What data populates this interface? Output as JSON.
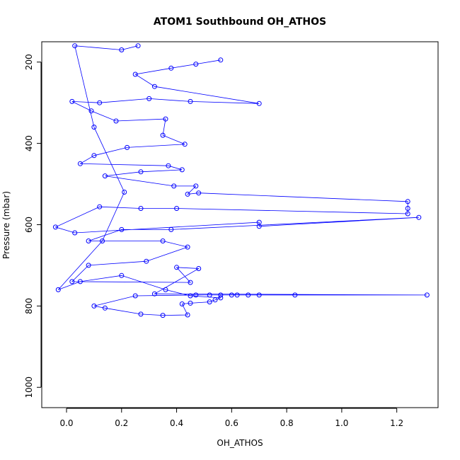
{
  "chart_data": {
    "type": "scatter",
    "title": "ATOM1 Southbound OH_ATHOS",
    "xlabel": "OH_ATHOS",
    "ylabel": "Pressure (mbar)",
    "xlim": [
      -0.09,
      1.35
    ],
    "ylim": [
      1050,
      150
    ],
    "y_reversed": true,
    "x_ticks": [
      0.0,
      0.2,
      0.4,
      0.6,
      0.8,
      1.0,
      1.2
    ],
    "x_tick_labels": [
      "0.0",
      "0.2",
      "0.4",
      "0.6",
      "0.8",
      "1.0",
      "1.2"
    ],
    "y_ticks": [
      200,
      400,
      600,
      800,
      1000
    ],
    "y_tick_labels": [
      "200",
      "400",
      "600",
      "800",
      "1000"
    ],
    "color": "#0000ff",
    "marker": "open-circle",
    "lines_connect_points": true,
    "series": [
      {
        "values": [
          [
            0.56,
            195
          ],
          [
            0.47,
            205
          ],
          [
            0.38,
            215
          ],
          [
            0.25,
            230
          ],
          [
            0.32,
            260
          ],
          [
            0.7,
            302
          ],
          [
            0.45,
            297
          ],
          [
            0.3,
            290
          ],
          [
            0.12,
            300
          ],
          [
            0.02,
            297
          ],
          [
            0.09,
            320
          ],
          [
            0.18,
            345
          ],
          [
            0.36,
            340
          ],
          [
            0.35,
            380
          ],
          [
            0.43,
            402
          ],
          [
            0.22,
            410
          ],
          [
            0.1,
            430
          ],
          [
            0.05,
            450
          ],
          [
            0.37,
            455
          ],
          [
            0.42,
            465
          ],
          [
            0.27,
            470
          ],
          [
            0.14,
            480
          ],
          [
            0.39,
            505
          ],
          [
            0.47,
            505
          ],
          [
            0.44,
            525
          ],
          [
            0.48,
            522
          ],
          [
            1.24,
            543
          ],
          [
            1.24,
            560
          ],
          [
            1.24,
            573
          ],
          [
            0.4,
            560
          ],
          [
            0.27,
            560
          ],
          [
            0.12,
            556
          ],
          [
            -0.04,
            606
          ],
          [
            0.03,
            620
          ],
          [
            0.7,
            594
          ],
          [
            0.7,
            604
          ],
          [
            1.28,
            582
          ],
          [
            0.38,
            612
          ],
          [
            0.2,
            612
          ],
          [
            0.08,
            640
          ],
          [
            0.35,
            640
          ],
          [
            0.44,
            655
          ],
          [
            0.29,
            690
          ],
          [
            0.08,
            700
          ],
          [
            0.02,
            740
          ],
          [
            0.45,
            742
          ],
          [
            0.4,
            705
          ],
          [
            0.48,
            708
          ],
          [
            0.32,
            770
          ],
          [
            1.31,
            773
          ],
          [
            0.83,
            773
          ],
          [
            0.7,
            773
          ],
          [
            0.66,
            773
          ],
          [
            0.62,
            773
          ],
          [
            0.6,
            773
          ],
          [
            0.56,
            773
          ],
          [
            0.52,
            773
          ],
          [
            0.47,
            773
          ],
          [
            0.25,
            775
          ],
          [
            0.1,
            800
          ],
          [
            0.14,
            805
          ],
          [
            0.27,
            820
          ],
          [
            0.35,
            823
          ],
          [
            0.44,
            822
          ],
          [
            0.42,
            795
          ],
          [
            0.45,
            793
          ],
          [
            0.52,
            790
          ],
          [
            0.54,
            785
          ],
          [
            0.56,
            780
          ],
          [
            0.45,
            775
          ],
          [
            0.36,
            760
          ],
          [
            0.2,
            725
          ],
          [
            0.05,
            740
          ],
          [
            -0.03,
            760
          ],
          [
            0.13,
            640
          ],
          [
            0.21,
            520
          ],
          [
            0.1,
            360
          ],
          [
            0.03,
            160
          ],
          [
            0.2,
            170
          ],
          [
            0.26,
            160
          ]
        ]
      }
    ]
  }
}
